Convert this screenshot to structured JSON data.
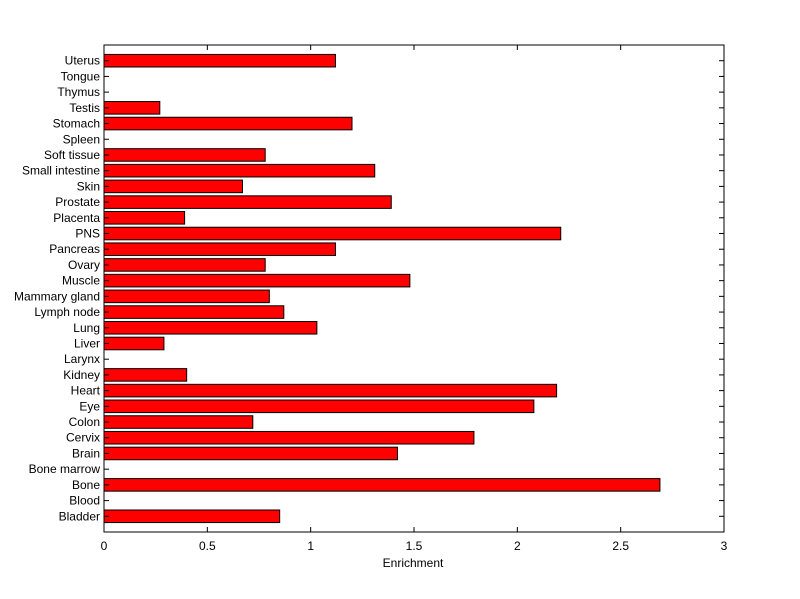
{
  "chart_data": {
    "type": "bar",
    "orientation": "horizontal",
    "title": "",
    "xlabel": "Enrichment",
    "ylabel": "",
    "xlim": [
      0,
      3
    ],
    "xticks": [
      "0",
      "0.5",
      "1",
      "1.5",
      "2",
      "2.5",
      "3"
    ],
    "grid": false,
    "bar_color": "#ff0000",
    "categories": [
      "Bladder",
      "Blood",
      "Bone",
      "Bone marrow",
      "Brain",
      "Cervix",
      "Colon",
      "Eye",
      "Heart",
      "Kidney",
      "Larynx",
      "Liver",
      "Lung",
      "Lymph node",
      "Mammary gland",
      "Muscle",
      "Ovary",
      "Pancreas",
      "PNS",
      "Placenta",
      "Prostate",
      "Skin",
      "Small intestine",
      "Soft tissue",
      "Spleen",
      "Stomach",
      "Testis",
      "Thymus",
      "Tongue",
      "Uterus"
    ],
    "values": [
      0.85,
      0,
      2.69,
      0,
      1.42,
      1.79,
      0.72,
      2.08,
      2.19,
      0.4,
      0,
      0.29,
      1.03,
      0.87,
      0.8,
      1.48,
      0.78,
      1.12,
      2.21,
      0.39,
      1.39,
      0.67,
      1.31,
      0.78,
      0,
      1.2,
      0.27,
      0,
      0,
      1.12
    ]
  }
}
